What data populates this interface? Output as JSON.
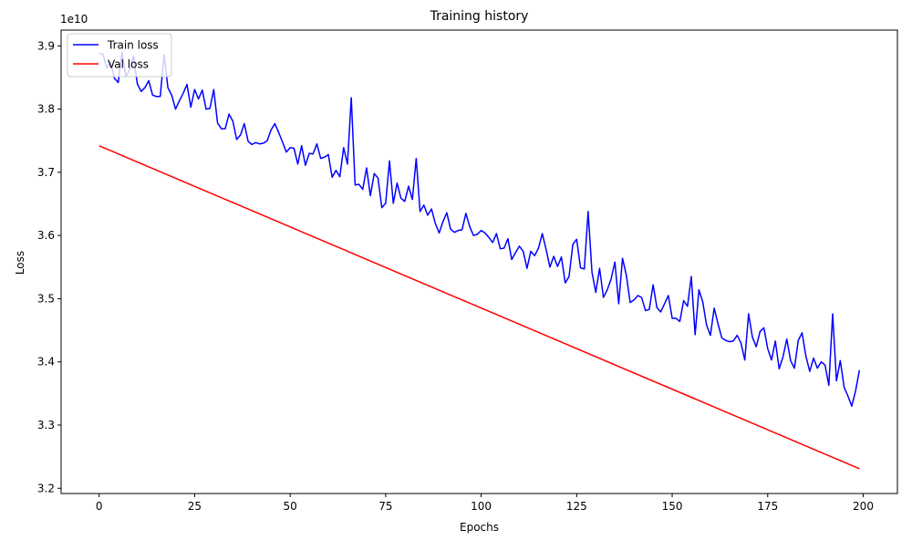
{
  "chart_data": {
    "type": "line",
    "title": "Training history",
    "xlabel": "Epochs",
    "ylabel": "Loss",
    "y_multiplier_label": "1e10",
    "xlim": [
      -9.95,
      208.95
    ],
    "ylim": [
      3.1917,
      3.925
    ],
    "x_ticks": [
      0,
      25,
      50,
      75,
      100,
      125,
      150,
      175,
      200
    ],
    "x_tick_labels": [
      "0",
      "25",
      "50",
      "75",
      "100",
      "125",
      "150",
      "175",
      "200"
    ],
    "y_ticks": [
      3.2,
      3.3,
      3.4,
      3.5,
      3.6,
      3.7,
      3.8,
      3.9
    ],
    "y_tick_labels": [
      "3.2",
      "3.3",
      "3.4",
      "3.5",
      "3.6",
      "3.7",
      "3.8",
      "3.9"
    ],
    "grid": false,
    "legend_position": "top-left",
    "series": [
      {
        "name": "Train loss",
        "color": "#0000ff",
        "x_start": 0,
        "x_step": 1,
        "values": [
          3.888,
          3.887,
          3.865,
          3.875,
          3.849,
          3.842,
          3.89,
          3.852,
          3.862,
          3.884,
          3.84,
          3.828,
          3.834,
          3.845,
          3.822,
          3.82,
          3.82,
          3.886,
          3.834,
          3.822,
          3.8,
          3.813,
          3.825,
          3.839,
          3.803,
          3.831,
          3.816,
          3.83,
          3.8,
          3.801,
          3.831,
          3.778,
          3.769,
          3.769,
          3.792,
          3.781,
          3.752,
          3.759,
          3.777,
          3.749,
          3.744,
          3.747,
          3.745,
          3.746,
          3.75,
          3.767,
          3.777,
          3.763,
          3.748,
          3.732,
          3.739,
          3.738,
          3.713,
          3.742,
          3.711,
          3.73,
          3.729,
          3.745,
          3.722,
          3.724,
          3.728,
          3.692,
          3.703,
          3.693,
          3.739,
          3.713,
          3.818,
          3.68,
          3.681,
          3.673,
          3.707,
          3.663,
          3.698,
          3.691,
          3.644,
          3.651,
          3.718,
          3.651,
          3.683,
          3.659,
          3.654,
          3.678,
          3.657,
          3.722,
          3.638,
          3.648,
          3.632,
          3.642,
          3.619,
          3.604,
          3.622,
          3.636,
          3.61,
          3.605,
          3.608,
          3.609,
          3.635,
          3.614,
          3.6,
          3.602,
          3.608,
          3.604,
          3.597,
          3.589,
          3.603,
          3.579,
          3.58,
          3.595,
          3.562,
          3.573,
          3.583,
          3.575,
          3.548,
          3.575,
          3.568,
          3.58,
          3.603,
          3.578,
          3.55,
          3.567,
          3.551,
          3.566,
          3.525,
          3.535,
          3.586,
          3.594,
          3.549,
          3.547,
          3.638,
          3.542,
          3.51,
          3.548,
          3.502,
          3.514,
          3.531,
          3.558,
          3.492,
          3.564,
          3.537,
          3.494,
          3.498,
          3.505,
          3.502,
          3.481,
          3.483,
          3.522,
          3.486,
          3.479,
          3.492,
          3.505,
          3.469,
          3.469,
          3.464,
          3.497,
          3.488,
          3.535,
          3.443,
          3.514,
          3.495,
          3.458,
          3.442,
          3.485,
          3.46,
          3.438,
          3.434,
          3.432,
          3.433,
          3.442,
          3.43,
          3.403,
          3.476,
          3.439,
          3.424,
          3.448,
          3.454,
          3.421,
          3.403,
          3.433,
          3.389,
          3.408,
          3.436,
          3.402,
          3.39,
          3.434,
          3.446,
          3.409,
          3.385,
          3.406,
          3.39,
          3.4,
          3.395,
          3.363,
          3.476,
          3.37,
          3.402,
          3.36,
          3.346,
          3.33,
          3.354,
          3.387
        ]
      },
      {
        "name": "Val loss",
        "color": "#ff0000",
        "x": [
          0,
          199
        ],
        "values": [
          3.742,
          3.231
        ]
      }
    ]
  }
}
